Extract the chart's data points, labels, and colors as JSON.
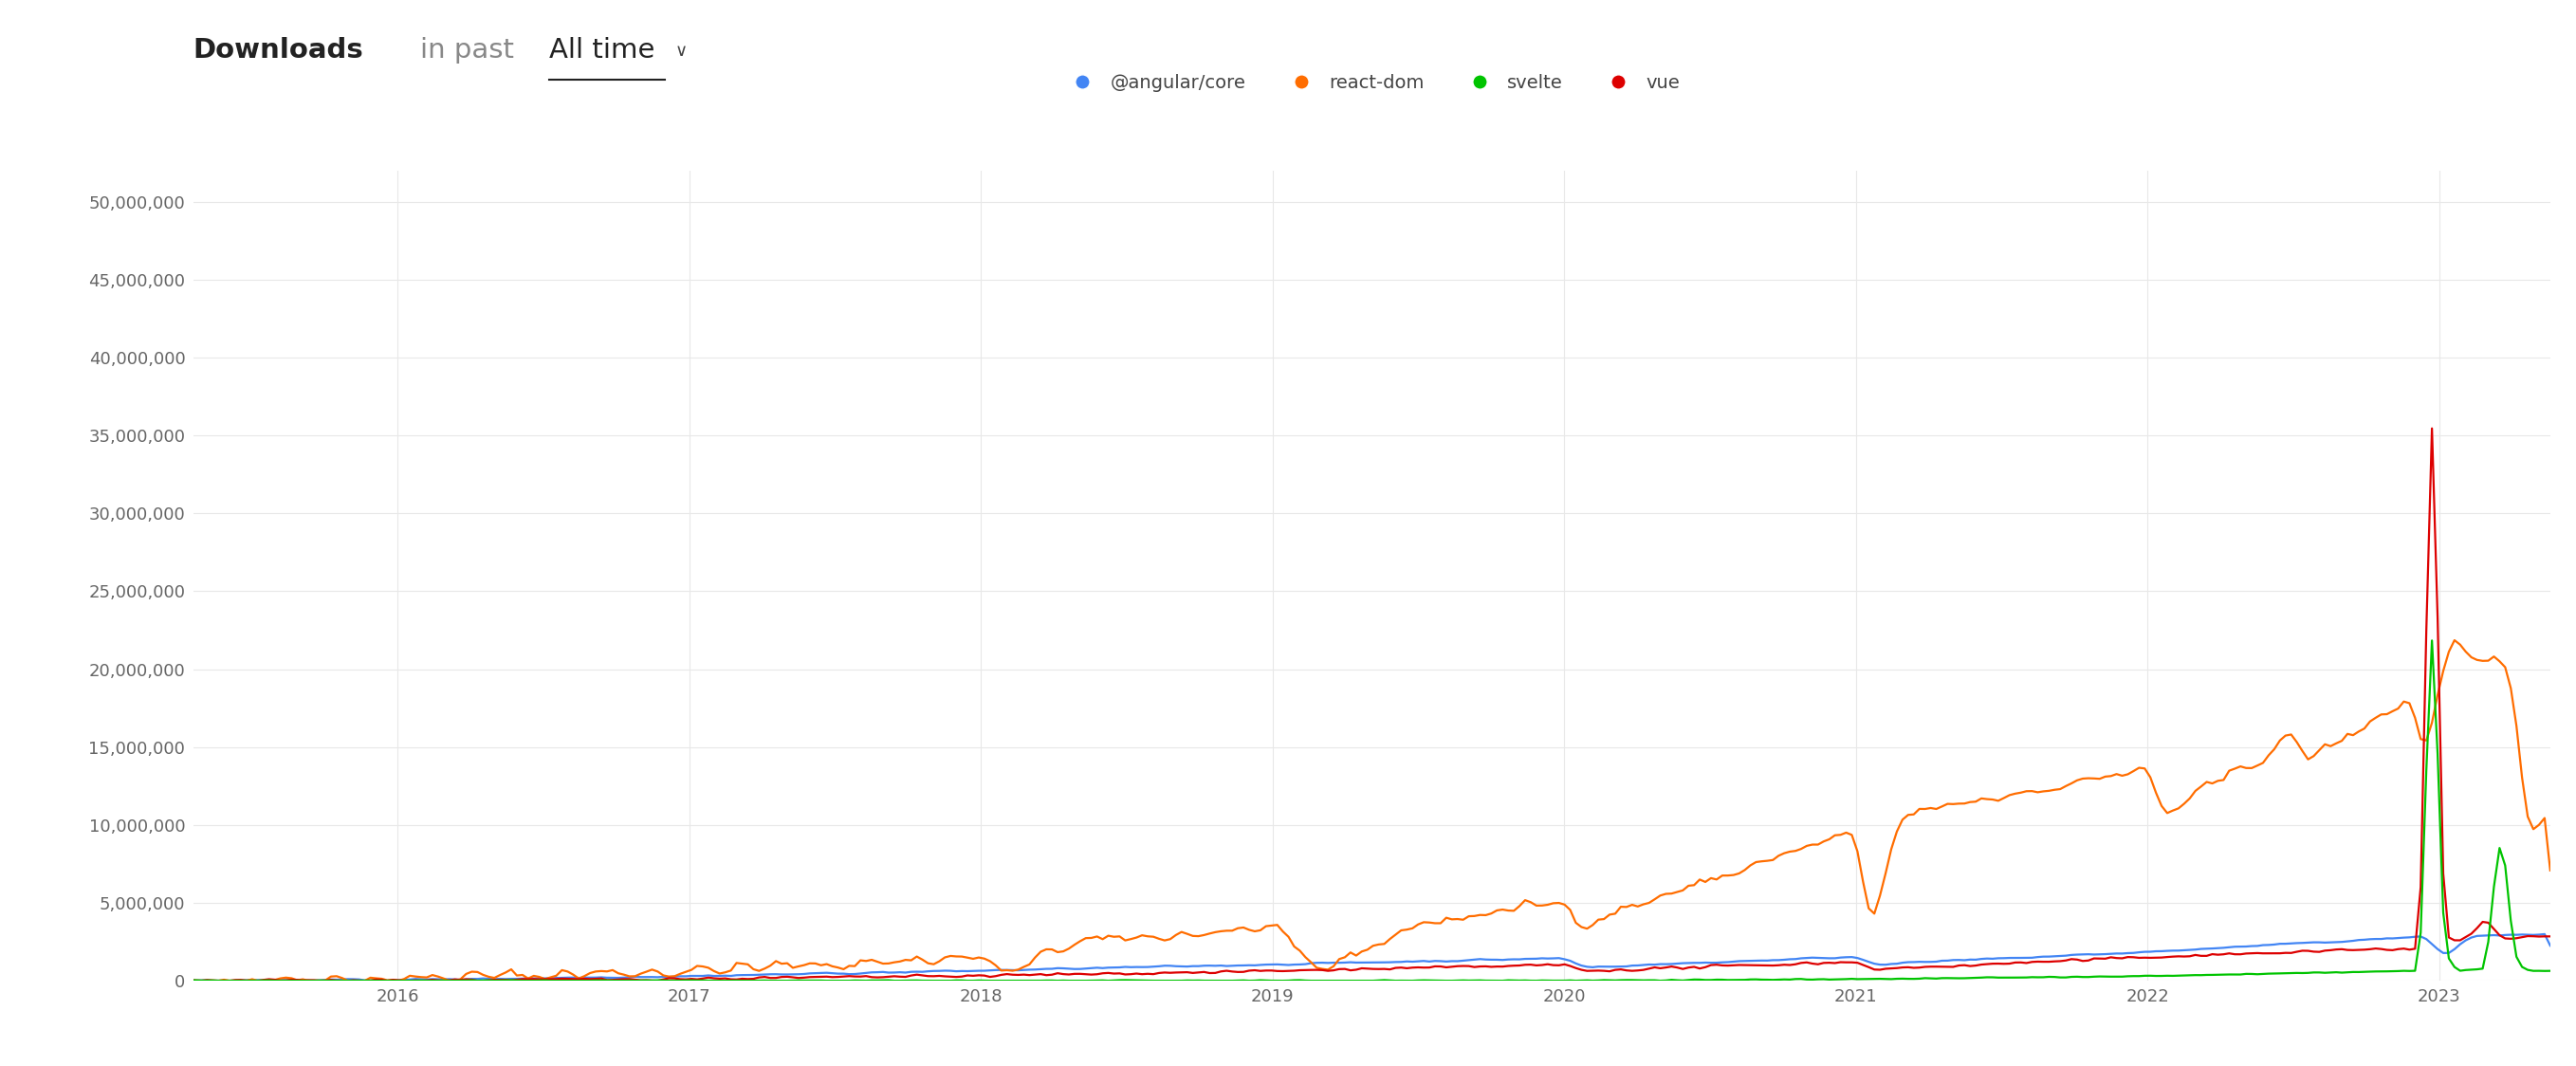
{
  "title_bold": "Downloads",
  "title_regular": " in past",
  "title_alltime": "All time",
  "title_arrow": "⌄",
  "background_color": "#ffffff",
  "plot_background": "#ffffff",
  "grid_color": "#e8e8e8",
  "ylim": [
    0,
    52000000
  ],
  "yticks": [
    0,
    5000000,
    10000000,
    15000000,
    20000000,
    25000000,
    30000000,
    35000000,
    40000000,
    45000000,
    50000000
  ],
  "ytick_labels": [
    "0",
    "5,000,000",
    "10,000,000",
    "15,000,000",
    "20,000,000",
    "25,000,000",
    "30,000,000",
    "35,000,000",
    "40,000,000",
    "45,000,000",
    "50,000,000"
  ],
  "xtick_labels": [
    "2016",
    "2017",
    "2018",
    "2019",
    "2020",
    "2021",
    "2022",
    "2023"
  ],
  "series": {
    "angular": {
      "label": "@angular/core",
      "color": "#4285F4"
    },
    "react": {
      "label": "react-dom",
      "color": "#FF6D00"
    },
    "svelte": {
      "label": "svelte",
      "color": "#00C400"
    },
    "vue": {
      "label": "vue",
      "color": "#DD0000"
    }
  }
}
